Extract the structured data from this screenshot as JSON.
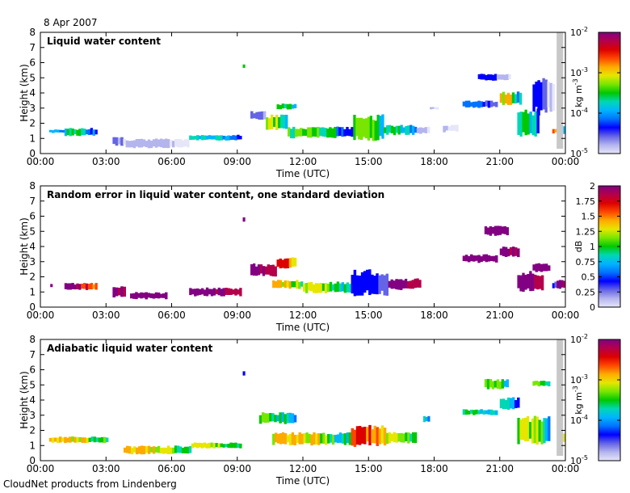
{
  "date": "8 Apr 2007",
  "footer": "CloudNet products from Lindenberg",
  "colors": {
    "missing": "#c8c8c8"
  },
  "colormap": [
    "#e6e6fa",
    "#b4b4ee",
    "#6464e6",
    "#0000ff",
    "#0073ff",
    "#00b4ff",
    "#00d7b4",
    "#00c800",
    "#78e600",
    "#e6e600",
    "#ffaa00",
    "#ff4600",
    "#dc0000",
    "#b4004b",
    "#820082"
  ],
  "chart_data": [
    {
      "type": "heatmap",
      "title": "Liquid water content",
      "xlabel": "Time (UTC)",
      "ylabel": "Height (km)",
      "xlim": [
        0,
        24
      ],
      "ylim": [
        0,
        8
      ],
      "xticks": [
        "00:00",
        "03:00",
        "06:00",
        "09:00",
        "12:00",
        "15:00",
        "18:00",
        "21:00",
        "00:00"
      ],
      "yticks": [
        "0",
        "1",
        "2",
        "3",
        "4",
        "5",
        "6",
        "7",
        "8"
      ],
      "colorbar": {
        "label": "kg m",
        "label_sup": "-3",
        "scale": "log",
        "ticks": [
          {
            "base": "10",
            "exp": "-2"
          },
          {
            "base": "10",
            "exp": "-3"
          },
          {
            "base": "10",
            "exp": "-4"
          },
          {
            "base": "10",
            "exp": "-5"
          }
        ]
      },
      "missing_data_times": [
        23.6,
        23.9
      ],
      "segments": [
        {
          "t0": 0.4,
          "t1": 1.1,
          "z0": 1.35,
          "z1": 1.6,
          "c0": 4,
          "c1": 5
        },
        {
          "t0": 1.1,
          "t1": 2.6,
          "z0": 1.15,
          "z1": 1.7,
          "c0": 3,
          "c1": 7
        },
        {
          "t0": 3.3,
          "t1": 3.9,
          "z0": 0.5,
          "z1": 1.1,
          "c0": 0,
          "c1": 2
        },
        {
          "t0": 3.9,
          "t1": 6.8,
          "z0": 0.35,
          "z1": 1.0,
          "c0": 0,
          "c1": 1
        },
        {
          "t0": 6.8,
          "t1": 9.2,
          "z0": 0.85,
          "z1": 1.25,
          "c0": 3,
          "c1": 6
        },
        {
          "t0": 9.25,
          "t1": 9.35,
          "z0": 5.6,
          "z1": 5.9,
          "c0": 6,
          "c1": 7
        },
        {
          "t0": 9.6,
          "t1": 10.3,
          "z0": 2.2,
          "z1": 2.8,
          "c0": 1,
          "c1": 2
        },
        {
          "t0": 10.3,
          "t1": 11.3,
          "z0": 1.5,
          "z1": 2.6,
          "c0": 5,
          "c1": 9
        },
        {
          "t0": 10.8,
          "t1": 11.7,
          "z0": 2.9,
          "z1": 3.3,
          "c0": 5,
          "c1": 7
        },
        {
          "t0": 11.3,
          "t1": 14.3,
          "z0": 1.0,
          "z1": 1.8,
          "c0": 3,
          "c1": 8
        },
        {
          "t0": 14.3,
          "t1": 15.7,
          "z0": 0.8,
          "z1": 2.6,
          "c0": 5,
          "c1": 8
        },
        {
          "t0": 15.7,
          "t1": 17.2,
          "z0": 1.2,
          "z1": 1.9,
          "c0": 4,
          "c1": 7
        },
        {
          "t0": 17.2,
          "t1": 17.8,
          "z0": 1.3,
          "z1": 1.8,
          "c0": 0,
          "c1": 1
        },
        {
          "t0": 17.8,
          "t1": 18.2,
          "z0": 2.9,
          "z1": 3.1,
          "c0": 0,
          "c1": 1
        },
        {
          "t0": 18.4,
          "t1": 19.1,
          "z0": 1.4,
          "z1": 1.9,
          "c0": 0,
          "c1": 1
        },
        {
          "t0": 19.3,
          "t1": 20.9,
          "z0": 3.0,
          "z1": 3.5,
          "c0": 2,
          "c1": 4
        },
        {
          "t0": 20.0,
          "t1": 21.5,
          "z0": 4.8,
          "z1": 5.3,
          "c0": 0,
          "c1": 3
        },
        {
          "t0": 21.0,
          "t1": 22.0,
          "z0": 3.2,
          "z1": 4.1,
          "c0": 3,
          "c1": 10
        },
        {
          "t0": 21.8,
          "t1": 22.8,
          "z0": 1.1,
          "z1": 3.0,
          "c0": 3,
          "c1": 7
        },
        {
          "t0": 22.5,
          "t1": 23.5,
          "z0": 2.5,
          "z1": 5.0,
          "c0": 0,
          "c1": 3
        },
        {
          "t0": 23.4,
          "t1": 23.6,
          "z0": 1.3,
          "z1": 1.7,
          "c0": 10,
          "c1": 12
        },
        {
          "t0": 23.9,
          "t1": 24.0,
          "z0": 1.2,
          "z1": 1.8,
          "c0": 3,
          "c1": 5
        }
      ]
    },
    {
      "type": "heatmap",
      "title": "Random error in liquid water content, one standard deviation",
      "xlabel": "Time (UTC)",
      "ylabel": "Height (km)",
      "xlim": [
        0,
        24
      ],
      "ylim": [
        0,
        8
      ],
      "xticks": [
        "00:00",
        "03:00",
        "06:00",
        "09:00",
        "12:00",
        "15:00",
        "18:00",
        "21:00",
        "00:00"
      ],
      "yticks": [
        "0",
        "1",
        "2",
        "3",
        "4",
        "5",
        "6",
        "7",
        "8"
      ],
      "colorbar": {
        "label": "dB",
        "scale": "linear",
        "vmin": 0,
        "vmax": 2,
        "ticks": [
          "2",
          "1.75",
          "1.5",
          "1.25",
          "1",
          "0.75",
          "0.5",
          "0.25",
          "0"
        ]
      },
      "segments": [
        {
          "t0": 0.45,
          "t1": 0.55,
          "z0": 1.3,
          "z1": 1.6,
          "c0": 14,
          "c1": 14
        },
        {
          "t0": 1.1,
          "t1": 2.6,
          "z0": 1.1,
          "z1": 1.6,
          "c0": 10,
          "c1": 14
        },
        {
          "t0": 3.3,
          "t1": 3.9,
          "z0": 0.6,
          "z1": 1.4,
          "c0": 13,
          "c1": 14
        },
        {
          "t0": 4.1,
          "t1": 5.8,
          "z0": 0.5,
          "z1": 1.0,
          "c0": 14,
          "c1": 14
        },
        {
          "t0": 6.8,
          "t1": 9.2,
          "z0": 0.7,
          "z1": 1.3,
          "c0": 13,
          "c1": 14
        },
        {
          "t0": 9.25,
          "t1": 9.35,
          "z0": 5.6,
          "z1": 6.0,
          "c0": 14,
          "c1": 14
        },
        {
          "t0": 9.6,
          "t1": 10.8,
          "z0": 2.0,
          "z1": 2.9,
          "c0": 12,
          "c1": 14
        },
        {
          "t0": 10.8,
          "t1": 11.7,
          "z0": 2.5,
          "z1": 3.3,
          "c0": 9,
          "c1": 12
        },
        {
          "t0": 10.6,
          "t1": 12.0,
          "z0": 1.2,
          "z1": 1.8,
          "c0": 6,
          "c1": 10
        },
        {
          "t0": 12.0,
          "t1": 14.2,
          "z0": 0.9,
          "z1": 1.7,
          "c0": 5,
          "c1": 9
        },
        {
          "t0": 14.2,
          "t1": 15.9,
          "z0": 0.7,
          "z1": 2.5,
          "c0": 2,
          "c1": 3
        },
        {
          "t0": 15.9,
          "t1": 17.4,
          "z0": 1.1,
          "z1": 1.9,
          "c0": 13,
          "c1": 14
        },
        {
          "t0": 19.3,
          "t1": 20.9,
          "z0": 2.9,
          "z1": 3.5,
          "c0": 14,
          "c1": 14
        },
        {
          "t0": 20.3,
          "t1": 21.4,
          "z0": 4.7,
          "z1": 5.4,
          "c0": 14,
          "c1": 14
        },
        {
          "t0": 21.0,
          "t1": 21.9,
          "z0": 3.3,
          "z1": 4.0,
          "c0": 13,
          "c1": 14
        },
        {
          "t0": 21.8,
          "t1": 23.0,
          "z0": 1.0,
          "z1": 2.4,
          "c0": 13,
          "c1": 14
        },
        {
          "t0": 22.5,
          "t1": 23.3,
          "z0": 2.3,
          "z1": 2.9,
          "c0": 14,
          "c1": 14
        },
        {
          "t0": 23.4,
          "t1": 23.6,
          "z0": 1.2,
          "z1": 1.7,
          "c0": 2,
          "c1": 3
        },
        {
          "t0": 23.6,
          "t1": 24.0,
          "z0": 1.2,
          "z1": 1.9,
          "c0": 13,
          "c1": 14
        }
      ]
    },
    {
      "type": "heatmap",
      "title": "Adiabatic liquid water content",
      "xlabel": "Time (UTC)",
      "ylabel": "Height (km)",
      "xlim": [
        0,
        24
      ],
      "ylim": [
        0,
        8
      ],
      "xticks": [
        "00:00",
        "03:00",
        "06:00",
        "09:00",
        "12:00",
        "15:00",
        "18:00",
        "21:00",
        "00:00"
      ],
      "yticks": [
        "0",
        "1",
        "2",
        "3",
        "4",
        "5",
        "6",
        "7",
        "8"
      ],
      "colorbar": {
        "label": "kg m",
        "label_sup": "-3",
        "scale": "log",
        "ticks": [
          {
            "base": "10",
            "exp": "-2"
          },
          {
            "base": "10",
            "exp": "-3"
          },
          {
            "base": "10",
            "exp": "-4"
          },
          {
            "base": "10",
            "exp": "-5"
          }
        ]
      },
      "missing_data_times": [
        23.6,
        23.9
      ],
      "segments": [
        {
          "t0": 0.4,
          "t1": 3.1,
          "z0": 1.15,
          "z1": 1.6,
          "c0": 6,
          "c1": 10
        },
        {
          "t0": 3.8,
          "t1": 6.9,
          "z0": 0.4,
          "z1": 1.0,
          "c0": 6,
          "c1": 10
        },
        {
          "t0": 6.9,
          "t1": 9.2,
          "z0": 0.8,
          "z1": 1.2,
          "c0": 6,
          "c1": 9
        },
        {
          "t0": 9.25,
          "t1": 9.35,
          "z0": 5.6,
          "z1": 5.9,
          "c0": 3,
          "c1": 3
        },
        {
          "t0": 10.0,
          "t1": 11.7,
          "z0": 2.4,
          "z1": 3.2,
          "c0": 4,
          "c1": 8
        },
        {
          "t0": 10.6,
          "t1": 14.2,
          "z0": 1.0,
          "z1": 1.9,
          "c0": 5,
          "c1": 10
        },
        {
          "t0": 14.2,
          "t1": 15.8,
          "z0": 0.9,
          "z1": 2.4,
          "c0": 9,
          "c1": 12
        },
        {
          "t0": 15.8,
          "t1": 17.2,
          "z0": 1.1,
          "z1": 1.9,
          "c0": 6,
          "c1": 9
        },
        {
          "t0": 17.5,
          "t1": 17.8,
          "z0": 2.5,
          "z1": 3.0,
          "c0": 4,
          "c1": 6
        },
        {
          "t0": 19.3,
          "t1": 20.9,
          "z0": 3.0,
          "z1": 3.4,
          "c0": 4,
          "c1": 7
        },
        {
          "t0": 20.3,
          "t1": 21.4,
          "z0": 4.7,
          "z1": 5.4,
          "c0": 5,
          "c1": 8
        },
        {
          "t0": 21.0,
          "t1": 21.9,
          "z0": 3.3,
          "z1": 4.2,
          "c0": 3,
          "c1": 6
        },
        {
          "t0": 21.8,
          "t1": 23.3,
          "z0": 1.0,
          "z1": 3.0,
          "c0": 4,
          "c1": 9
        },
        {
          "t0": 22.5,
          "t1": 23.3,
          "z0": 4.9,
          "z1": 5.3,
          "c0": 5,
          "c1": 8
        },
        {
          "t0": 23.9,
          "t1": 24.0,
          "z0": 1.1,
          "z1": 2.0,
          "c0": 6,
          "c1": 9
        }
      ]
    }
  ]
}
